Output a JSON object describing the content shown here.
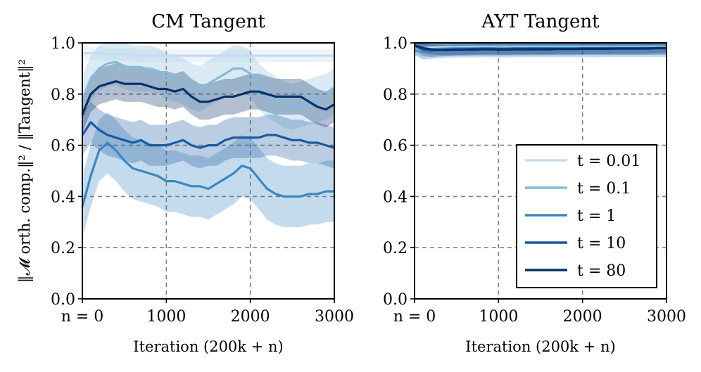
{
  "colors": {
    "t_0_01": "#c6dbef",
    "t_0_1": "#84bcdb",
    "t_1": "#3a87c2",
    "t_10": "#1a5aa0",
    "t_80": "#08306b"
  },
  "shared_ylabel": "‖𝓜 orth. comp.‖² / ‖Tangent‖²",
  "chart_data": [
    {
      "type": "line",
      "title": "CM Tangent",
      "xlabel": "Iteration (200k + n)",
      "ylabel": "‖𝓜 orth. comp.‖² / ‖Tangent‖²",
      "xlim": [
        0,
        3000
      ],
      "ylim": [
        0.0,
        1.0
      ],
      "xticks": [
        0,
        1000,
        2000,
        3000
      ],
      "xtick_labels": [
        "n = 0",
        "1000",
        "2000",
        "3000"
      ],
      "yticks": [
        0.0,
        0.2,
        0.4,
        0.6,
        0.8,
        1.0
      ],
      "ytick_labels": [
        "0.0",
        "0.2",
        "0.4",
        "0.6",
        "0.8",
        "1.0"
      ],
      "grid": true,
      "x": [
        0,
        100,
        200,
        300,
        400,
        500,
        600,
        700,
        800,
        900,
        1000,
        1100,
        1200,
        1300,
        1400,
        1500,
        1600,
        1700,
        1800,
        1900,
        2000,
        2100,
        2200,
        2300,
        2400,
        2500,
        2600,
        2700,
        2800,
        2900,
        3000
      ],
      "series": [
        {
          "name": "t = 0.01",
          "color_key": "t_0_01",
          "values": [
            0.96,
            0.96,
            0.96,
            0.955,
            0.955,
            0.955,
            0.955,
            0.95,
            0.95,
            0.95,
            0.95,
            0.95,
            0.95,
            0.95,
            0.95,
            0.95,
            0.95,
            0.95,
            0.95,
            0.95,
            0.95,
            0.95,
            0.95,
            0.95,
            0.95,
            0.95,
            0.95,
            0.95,
            0.95,
            0.95,
            0.95
          ],
          "band": 0.025
        },
        {
          "name": "t = 0.1",
          "color_key": "t_0_1",
          "values": [
            0.78,
            0.86,
            0.9,
            0.92,
            0.925,
            0.91,
            0.9,
            0.9,
            0.9,
            0.89,
            0.87,
            0.86,
            0.85,
            0.83,
            0.82,
            0.84,
            0.86,
            0.88,
            0.9,
            0.9,
            0.88,
            0.83,
            0.8,
            0.78,
            0.76,
            0.75,
            0.76,
            0.77,
            0.78,
            0.79,
            0.81
          ],
          "band": 0.09
        },
        {
          "name": "t = 1",
          "color_key": "t_1",
          "values": [
            0.36,
            0.48,
            0.58,
            0.61,
            0.58,
            0.54,
            0.51,
            0.5,
            0.49,
            0.48,
            0.46,
            0.46,
            0.45,
            0.44,
            0.44,
            0.43,
            0.45,
            0.47,
            0.49,
            0.52,
            0.51,
            0.47,
            0.43,
            0.41,
            0.4,
            0.4,
            0.4,
            0.41,
            0.41,
            0.42,
            0.42
          ],
          "band": 0.12
        },
        {
          "name": "t = 10",
          "color_key": "t_10",
          "values": [
            0.64,
            0.69,
            0.66,
            0.64,
            0.63,
            0.62,
            0.61,
            0.62,
            0.6,
            0.6,
            0.6,
            0.61,
            0.62,
            0.6,
            0.59,
            0.6,
            0.6,
            0.62,
            0.63,
            0.63,
            0.63,
            0.63,
            0.64,
            0.64,
            0.63,
            0.62,
            0.62,
            0.61,
            0.61,
            0.6,
            0.59
          ],
          "band": 0.08
        },
        {
          "name": "t = 80",
          "color_key": "t_80",
          "values": [
            0.72,
            0.8,
            0.83,
            0.84,
            0.85,
            0.84,
            0.84,
            0.84,
            0.83,
            0.82,
            0.82,
            0.81,
            0.82,
            0.79,
            0.77,
            0.77,
            0.78,
            0.79,
            0.79,
            0.8,
            0.81,
            0.81,
            0.8,
            0.79,
            0.79,
            0.79,
            0.79,
            0.77,
            0.75,
            0.74,
            0.76
          ],
          "band": 0.07
        }
      ]
    },
    {
      "type": "line",
      "title": "AYT Tangent",
      "xlabel": "Iteration (200k + n)",
      "ylabel": "",
      "xlim": [
        0,
        3000
      ],
      "ylim": [
        0.0,
        1.0
      ],
      "xticks": [
        0,
        1000,
        2000,
        3000
      ],
      "xtick_labels": [
        "n = 0",
        "1000",
        "2000",
        "3000"
      ],
      "yticks": [
        0.0,
        0.2,
        0.4,
        0.6,
        0.8,
        1.0
      ],
      "ytick_labels": [
        "0.0",
        "0.2",
        "0.4",
        "0.6",
        "0.8",
        "1.0"
      ],
      "grid": true,
      "legend_position": "lower-right",
      "x": [
        0,
        100,
        200,
        300,
        400,
        500,
        600,
        700,
        800,
        900,
        1000,
        1100,
        1200,
        1300,
        1400,
        1500,
        1600,
        1700,
        1800,
        1900,
        2000,
        2100,
        2200,
        2300,
        2400,
        2500,
        2600,
        2700,
        2800,
        2900,
        3000
      ],
      "series": [
        {
          "name": "t = 0.01",
          "color_key": "t_0_01",
          "values": [
            0.985,
            0.98,
            0.982,
            0.983,
            0.984,
            0.984,
            0.984,
            0.985,
            0.985,
            0.985,
            0.985,
            0.985,
            0.985,
            0.985,
            0.985,
            0.985,
            0.985,
            0.985,
            0.985,
            0.985,
            0.985,
            0.985,
            0.985,
            0.985,
            0.985,
            0.985,
            0.985,
            0.985,
            0.985,
            0.985,
            0.985
          ],
          "band": 0.015
        },
        {
          "name": "t = 0.1",
          "color_key": "t_0_1",
          "values": [
            0.98,
            0.97,
            0.975,
            0.978,
            0.98,
            0.98,
            0.98,
            0.981,
            0.981,
            0.982,
            0.982,
            0.982,
            0.982,
            0.982,
            0.982,
            0.983,
            0.983,
            0.983,
            0.983,
            0.983,
            0.983,
            0.983,
            0.983,
            0.983,
            0.983,
            0.983,
            0.983,
            0.983,
            0.983,
            0.983,
            0.983
          ],
          "band": 0.03
        },
        {
          "name": "t = 1",
          "color_key": "t_1",
          "values": [
            0.99,
            0.97,
            0.972,
            0.975,
            0.977,
            0.978,
            0.978,
            0.978,
            0.979,
            0.979,
            0.978,
            0.978,
            0.979,
            0.979,
            0.979,
            0.979,
            0.979,
            0.979,
            0.979,
            0.979,
            0.979,
            0.979,
            0.979,
            0.98,
            0.98,
            0.98,
            0.98,
            0.98,
            0.98,
            0.98,
            0.98
          ],
          "band": 0.035
        },
        {
          "name": "t = 10",
          "color_key": "t_10",
          "values": [
            0.99,
            0.975,
            0.97,
            0.972,
            0.974,
            0.975,
            0.975,
            0.976,
            0.976,
            0.976,
            0.976,
            0.976,
            0.977,
            0.977,
            0.977,
            0.977,
            0.977,
            0.977,
            0.977,
            0.977,
            0.978,
            0.978,
            0.978,
            0.978,
            0.978,
            0.978,
            0.978,
            0.978,
            0.979,
            0.979,
            0.979
          ],
          "band": 0.025
        },
        {
          "name": "t = 80",
          "color_key": "t_80",
          "values": [
            0.99,
            0.98,
            0.975,
            0.973,
            0.972,
            0.973,
            0.974,
            0.974,
            0.975,
            0.975,
            0.974,
            0.974,
            0.975,
            0.975,
            0.975,
            0.975,
            0.975,
            0.976,
            0.976,
            0.976,
            0.977,
            0.977,
            0.977,
            0.977,
            0.978,
            0.978,
            0.978,
            0.978,
            0.978,
            0.98,
            0.98
          ],
          "band": 0.02
        }
      ]
    }
  ]
}
